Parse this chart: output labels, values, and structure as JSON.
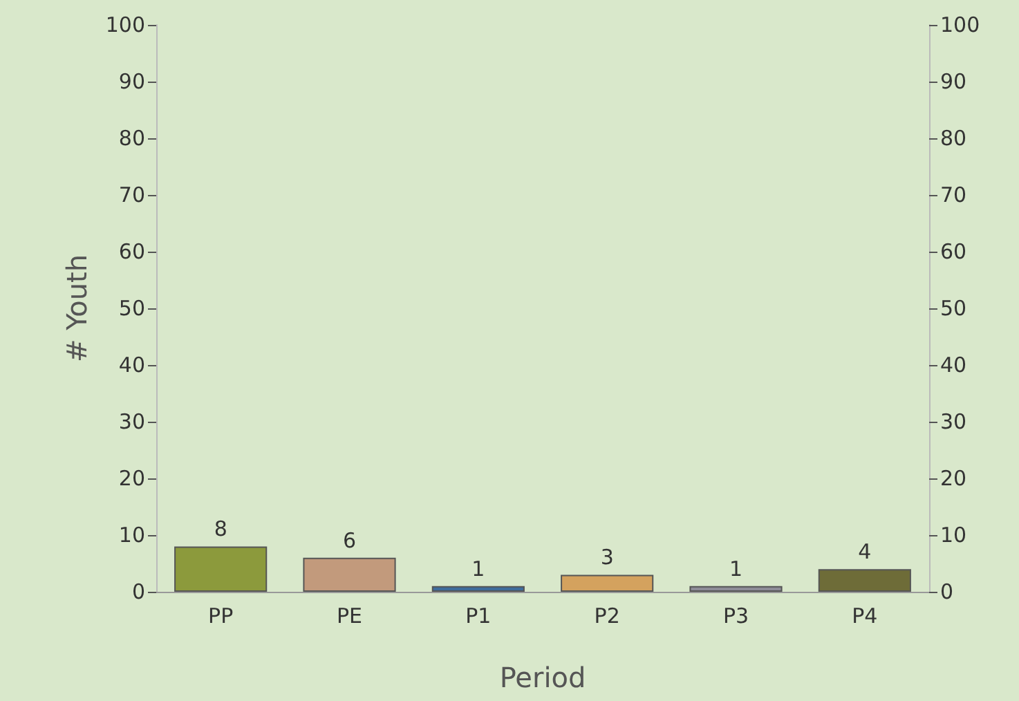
{
  "chart_data": {
    "type": "bar",
    "xlabel": "Period",
    "ylabel": "# Youth",
    "categories": [
      "PP",
      "PE",
      "P1",
      "P2",
      "P3",
      "P4"
    ],
    "values": [
      8,
      6,
      1,
      3,
      1,
      4
    ],
    "colors": [
      "#8c9a3c",
      "#c29a7c",
      "#3f6c9c",
      "#d4a25e",
      "#8e8c98",
      "#6e6c38"
    ],
    "ylim": [
      0,
      100
    ],
    "yticks": [
      0,
      10,
      20,
      30,
      40,
      50,
      60,
      70,
      80,
      90,
      100
    ],
    "y2lim": [
      0,
      100
    ],
    "y2ticks": [
      0,
      10,
      20,
      30,
      40,
      50,
      60,
      70,
      80,
      90,
      100
    ],
    "data_labels": true,
    "grid": false
  }
}
